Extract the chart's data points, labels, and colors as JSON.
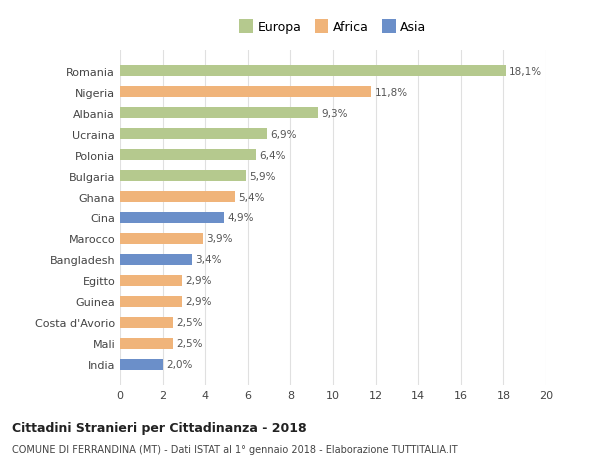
{
  "categories": [
    "Romania",
    "Nigeria",
    "Albania",
    "Ucraina",
    "Polonia",
    "Bulgaria",
    "Ghana",
    "Cina",
    "Marocco",
    "Bangladesh",
    "Egitto",
    "Guinea",
    "Costa d'Avorio",
    "Mali",
    "India"
  ],
  "values": [
    18.1,
    11.8,
    9.3,
    6.9,
    6.4,
    5.9,
    5.4,
    4.9,
    3.9,
    3.4,
    2.9,
    2.9,
    2.5,
    2.5,
    2.0
  ],
  "labels": [
    "18,1%",
    "11,8%",
    "9,3%",
    "6,9%",
    "6,4%",
    "5,9%",
    "5,4%",
    "4,9%",
    "3,9%",
    "3,4%",
    "2,9%",
    "2,9%",
    "2,5%",
    "2,5%",
    "2,0%"
  ],
  "continents": [
    "Europa",
    "Africa",
    "Europa",
    "Europa",
    "Europa",
    "Europa",
    "Africa",
    "Asia",
    "Africa",
    "Asia",
    "Africa",
    "Africa",
    "Africa",
    "Africa",
    "Asia"
  ],
  "colors": {
    "Europa": "#b5c98e",
    "Africa": "#f0b47a",
    "Asia": "#6b8fc9"
  },
  "legend_labels": [
    "Europa",
    "Africa",
    "Asia"
  ],
  "title1": "Cittadini Stranieri per Cittadinanza - 2018",
  "title2": "COMUNE DI FERRANDINA (MT) - Dati ISTAT al 1° gennaio 2018 - Elaborazione TUTTITALIA.IT",
  "xlim": [
    0,
    20
  ],
  "xticks": [
    0,
    2,
    4,
    6,
    8,
    10,
    12,
    14,
    16,
    18,
    20
  ],
  "bg_color": "#ffffff",
  "grid_color": "#e0e0e0"
}
